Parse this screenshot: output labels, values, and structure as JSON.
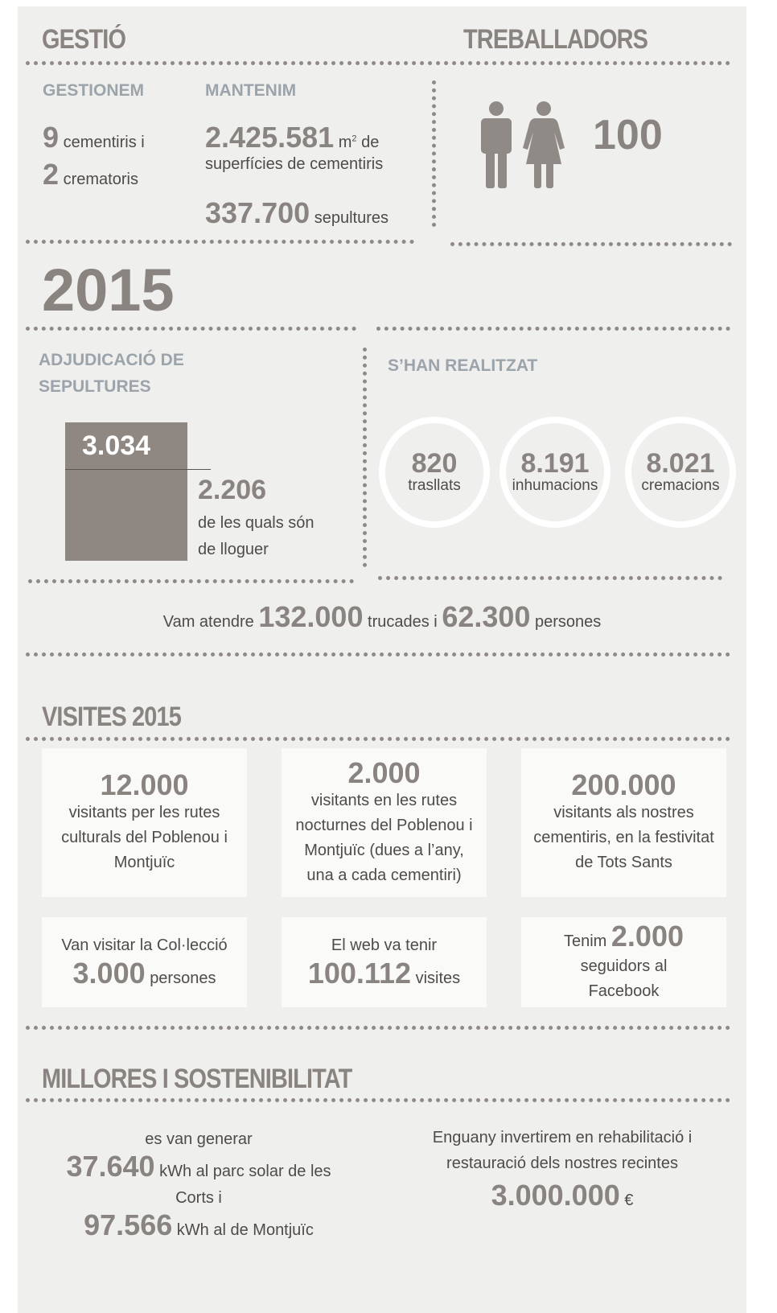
{
  "gestio": {
    "title": "GESTIÓ",
    "gestionem": {
      "label": "GESTIONEM",
      "cementiris": {
        "number": "9",
        "text": "cementiris i"
      },
      "crematoris": {
        "number": "2",
        "text": "crematoris"
      }
    },
    "mantenim": {
      "label": "MANTENIM",
      "superficie": {
        "number": "2.425.581",
        "unit": "m",
        "sup": "2",
        "text": "de",
        "text2": "superfícies de cementiris"
      },
      "sepultures": {
        "number": "337.700",
        "text": "sepultures"
      }
    }
  },
  "treballadors": {
    "title": "TREBALLADORS",
    "number": "100"
  },
  "year": "2015",
  "adjudicacio": {
    "title": "ADJUDICACIÓ DE SEPULTURES",
    "total": "3.034",
    "lloguer": {
      "number": "2.206",
      "text": "de les quals són de lloguer"
    }
  },
  "realitzat": {
    "title": "S’HAN REALITZAT",
    "items": [
      {
        "number": "820",
        "label": "trasllats"
      },
      {
        "number": "8.191",
        "label": "inhumacions"
      },
      {
        "number": "8.021",
        "label": "cremacions"
      }
    ]
  },
  "atencio": {
    "prefix": "Vam atendre",
    "trucades": "132.000",
    "mid": "trucades i",
    "persones": "62.300",
    "suffix": "persones"
  },
  "visites": {
    "title": "VISITES 2015",
    "cards": [
      {
        "number": "12.000",
        "after": "visitants per les rutes culturals del Poblenou i Montjuïc"
      },
      {
        "number": "2.000",
        "after": "visitants en les rutes nocturnes del Poblenou i Montjuïc (dues a l’any, una a cada cementiri)"
      },
      {
        "number": "200.000",
        "after": "visitants als nostres cementiris, en la festivitat de Tots Sants"
      },
      {
        "before": "Van visitar la Col·lecció",
        "number": "3.000",
        "after": "persones"
      },
      {
        "before": "El web va tenir",
        "number": "100.112",
        "after": "visites"
      },
      {
        "before": "Tenim",
        "number": "2.000",
        "after": "seguidors al Facebook"
      }
    ]
  },
  "millores": {
    "title": "MILLORES I SOSTENIBILITAT",
    "solar": {
      "intro": "es van generar",
      "corts_number": "37.640",
      "corts_text": "kWh al parc solar de les Corts i",
      "montjuic_number": "97.566",
      "montjuic_text": "kWh al de Montjuïc"
    },
    "inversio": {
      "text": "Enguany invertirem en rehabilitació i restauració dels nostres recintes",
      "number": "3.000.000",
      "unit": "€"
    }
  }
}
